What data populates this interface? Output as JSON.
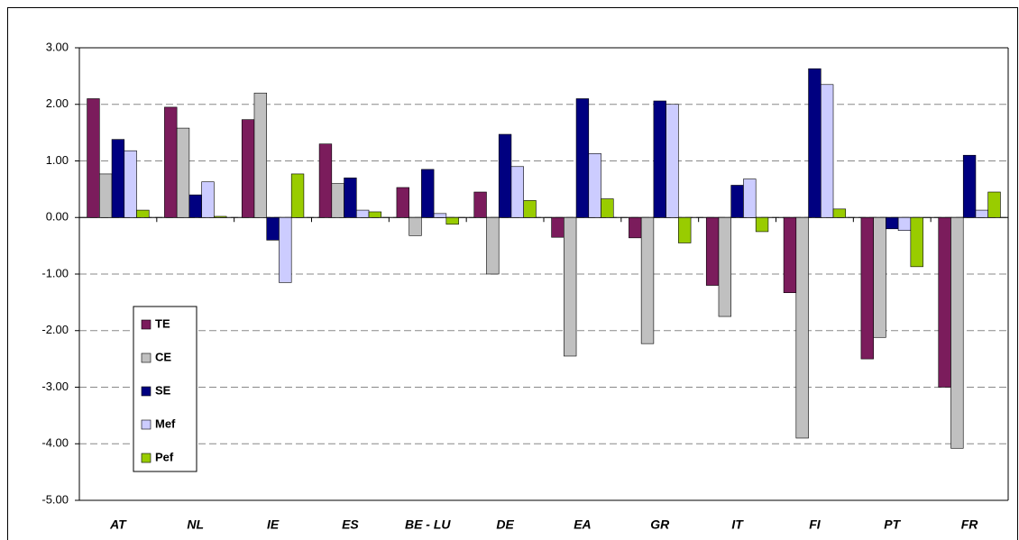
{
  "chart_data": {
    "type": "bar",
    "categories": [
      "AT",
      "NL",
      "IE",
      "ES",
      "BE - LU",
      "DE",
      "EA",
      "GR",
      "IT",
      "FI",
      "PT",
      "FR"
    ],
    "series": [
      {
        "name": "TE",
        "color": "#7b1c5c",
        "values": [
          2.1,
          1.95,
          1.73,
          1.3,
          0.53,
          0.45,
          -0.35,
          -0.36,
          -1.2,
          -1.33,
          -2.5,
          -3.0
        ]
      },
      {
        "name": "CE",
        "color": "#c0c0c0",
        "values": [
          0.77,
          1.58,
          2.2,
          0.6,
          -0.32,
          -1.0,
          -2.45,
          -2.23,
          -1.75,
          -3.9,
          -2.12,
          -4.08
        ]
      },
      {
        "name": "SE",
        "color": "#000080",
        "values": [
          1.38,
          0.4,
          -0.4,
          0.7,
          0.85,
          1.47,
          2.1,
          2.06,
          0.57,
          2.63,
          -0.2,
          1.1
        ]
      },
      {
        "name": "Mef",
        "color": "#ccccff",
        "values": [
          1.18,
          0.63,
          -1.15,
          0.13,
          0.07,
          0.9,
          1.13,
          2.0,
          0.68,
          2.35,
          -0.23,
          0.13
        ]
      },
      {
        "name": "Pef",
        "color": "#99cc00",
        "values": [
          0.13,
          0.02,
          0.77,
          0.1,
          -0.12,
          0.3,
          0.33,
          -0.45,
          -0.25,
          0.15,
          -0.87,
          0.45
        ]
      }
    ],
    "ylim": [
      -5,
      3
    ],
    "yticks": [
      {
        "value": -5,
        "label": "-5.00"
      },
      {
        "value": -4,
        "label": "-4.00"
      },
      {
        "value": -3,
        "label": "-3.00"
      },
      {
        "value": -2,
        "label": "-2.00"
      },
      {
        "value": -1,
        "label": "-1.00"
      },
      {
        "value": 0,
        "label": "0.00"
      },
      {
        "value": 1,
        "label": "1.00"
      },
      {
        "value": 2,
        "label": "2.00"
      },
      {
        "value": 3,
        "label": "3.00"
      }
    ],
    "grid": true,
    "legend": "left"
  }
}
